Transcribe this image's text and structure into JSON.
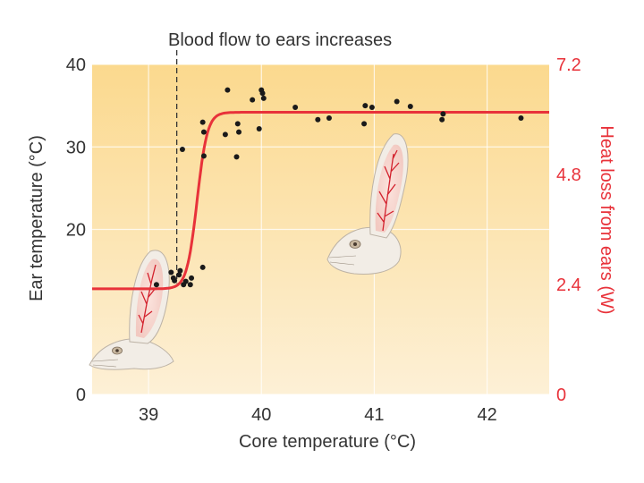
{
  "chart_data": {
    "type": "scatter",
    "title": "",
    "annotation": "Blood flow to ears increases",
    "threshold_x": 39.25,
    "xlabel": "Core temperature (°C)",
    "ylabel": "Ear temperature (°C)",
    "y2label": "Heat loss from ears (W)",
    "xlim": [
      38.5,
      42.55
    ],
    "ylim": [
      0,
      40
    ],
    "x_ticks": [
      39,
      40,
      41,
      42
    ],
    "y_ticks": [
      0,
      20,
      30,
      40
    ],
    "y2_ticks": [
      0,
      2.4,
      4.8,
      7.2
    ],
    "colors": {
      "curve": "#e8323a",
      "points": "#1a1a1a",
      "right_axis": "#e8323a",
      "bg_top": "#fbd98e",
      "bg_bottom": "#fdf0d6"
    },
    "series": [
      {
        "name": "Ear temperature measurements",
        "points": [
          [
            39.07,
            13.3
          ],
          [
            39.2,
            14.8
          ],
          [
            39.22,
            14.1
          ],
          [
            39.23,
            13.8
          ],
          [
            39.27,
            14.5
          ],
          [
            39.28,
            15.0
          ],
          [
            39.31,
            13.3
          ],
          [
            39.33,
            13.7
          ],
          [
            39.37,
            13.3
          ],
          [
            39.38,
            14.1
          ],
          [
            39.48,
            15.4
          ],
          [
            39.3,
            29.7
          ],
          [
            39.49,
            28.9
          ],
          [
            39.48,
            33.0
          ],
          [
            39.49,
            31.8
          ],
          [
            39.68,
            31.5
          ],
          [
            39.7,
            36.9
          ],
          [
            39.78,
            28.8
          ],
          [
            39.79,
            32.8
          ],
          [
            39.8,
            31.8
          ],
          [
            39.92,
            35.7
          ],
          [
            39.98,
            32.2
          ],
          [
            40.0,
            36.9
          ],
          [
            40.01,
            36.5
          ],
          [
            40.02,
            35.9
          ],
          [
            40.3,
            34.8
          ],
          [
            40.5,
            33.3
          ],
          [
            40.6,
            33.5
          ],
          [
            40.91,
            32.8
          ],
          [
            40.92,
            35.0
          ],
          [
            40.98,
            34.8
          ],
          [
            41.2,
            35.5
          ],
          [
            41.32,
            34.9
          ],
          [
            41.6,
            33.3
          ],
          [
            41.61,
            34.0
          ],
          [
            42.3,
            33.5
          ]
        ]
      },
      {
        "name": "Heat loss from ears (fitted curve)",
        "curve": {
          "x_start": 38.5,
          "x_end": 42.55,
          "low": 12.8,
          "high": 34.2,
          "midpoint": 39.43,
          "steepness": 22
        }
      }
    ]
  }
}
